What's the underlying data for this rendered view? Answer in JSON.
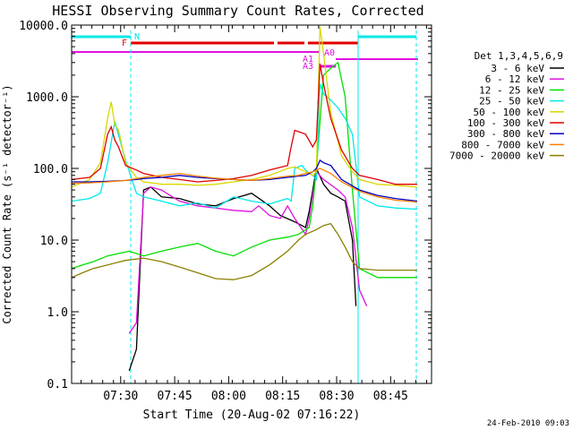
{
  "chart_data": {
    "type": "line",
    "title": "HESSI Observing Summary Count Rates, Corrected",
    "xlabel": "Start Time (20-Aug-02 07:16:22)",
    "ylabel": "Corrected Count Rate (s⁻¹ detector⁻¹)",
    "x_unit": "minutes since 07:16:22",
    "xlim": [
      0,
      100
    ],
    "ylim": [
      0.1,
      10000
    ],
    "yscale": "log",
    "x_ticks": [
      {
        "x": 13.63,
        "label": "07:30"
      },
      {
        "x": 28.63,
        "label": "07:45"
      },
      {
        "x": 43.63,
        "label": "08:00"
      },
      {
        "x": 58.63,
        "label": "08:15"
      },
      {
        "x": 73.63,
        "label": "08:30"
      },
      {
        "x": 88.63,
        "label": "08:45"
      }
    ],
    "y_ticks": [
      {
        "y": 10000,
        "label": "10000.0"
      },
      {
        "y": 1000,
        "label": "1000.0"
      },
      {
        "y": 100,
        "label": "100.0"
      },
      {
        "y": 10,
        "label": "10.0"
      },
      {
        "y": 1,
        "label": "1.0"
      },
      {
        "y": 0.1,
        "label": "0.1"
      }
    ],
    "legend_title": "Det 1,3,4,5,6,9",
    "legend_position": "right",
    "series": [
      {
        "name": "3 - 6 keV",
        "color": "#000000",
        "x": [
          16,
          18,
          20,
          22,
          25,
          30,
          35,
          40,
          45,
          50,
          55,
          58,
          62,
          65,
          66,
          68,
          70,
          72,
          74,
          76,
          78,
          79
        ],
        "y": [
          0.15,
          0.3,
          50,
          55,
          40,
          38,
          32,
          30,
          38,
          45,
          30,
          22,
          18,
          15,
          25,
          100,
          60,
          45,
          40,
          35,
          10,
          1.2
        ]
      },
      {
        "name": "6 - 12 keV",
        "color": "#e010e0",
        "x": [
          16,
          18,
          20,
          22,
          25,
          28,
          30,
          35,
          40,
          45,
          50,
          52,
          55,
          58,
          60,
          62,
          65,
          66,
          68,
          70,
          74,
          76,
          78,
          80,
          82
        ],
        "y": [
          0.5,
          0.7,
          45,
          55,
          50,
          40,
          35,
          30,
          28,
          26,
          25,
          30,
          22,
          20,
          30,
          20,
          12,
          20,
          90,
          70,
          50,
          40,
          15,
          2,
          1.2
        ]
      },
      {
        "name": "12 - 25 keV",
        "color": "#00e000",
        "x": [
          0,
          3,
          6,
          10,
          13,
          16,
          18,
          20,
          25,
          30,
          35,
          40,
          45,
          50,
          55,
          60,
          63,
          66,
          67,
          68,
          70,
          72,
          74,
          76,
          78,
          80,
          85,
          90,
          95,
          96
        ],
        "y": [
          4,
          4.5,
          5,
          6,
          6.5,
          7,
          6.5,
          6,
          7,
          8,
          9,
          7,
          6,
          8,
          10,
          11,
          12,
          15,
          30,
          100,
          2000,
          2500,
          3000,
          1000,
          50,
          4,
          3,
          3,
          3,
          3
        ]
      },
      {
        "name": "25 - 50 keV",
        "color": "#00e8e8",
        "x": [
          0,
          5,
          8,
          10,
          12,
          15,
          18,
          20,
          25,
          30,
          35,
          40,
          45,
          50,
          55,
          60,
          61,
          62,
          64,
          65,
          66,
          67,
          68,
          69,
          70,
          72,
          74,
          76,
          78,
          80,
          85,
          90,
          96
        ],
        "y": [
          35,
          38,
          45,
          120,
          450,
          130,
          45,
          40,
          35,
          30,
          33,
          28,
          40,
          35,
          32,
          38,
          35,
          100,
          110,
          95,
          85,
          80,
          70,
          1500,
          1100,
          900,
          700,
          500,
          300,
          40,
          30,
          28,
          27
        ]
      },
      {
        "name": "50 - 100 keV",
        "color": "#d8d800",
        "x": [
          0,
          5,
          8,
          10,
          11,
          12,
          13,
          15,
          18,
          20,
          25,
          30,
          35,
          40,
          45,
          50,
          55,
          60,
          62,
          65,
          67,
          68,
          69,
          70,
          72,
          75,
          78,
          80,
          85,
          90,
          96
        ],
        "y": [
          55,
          70,
          120,
          500,
          850,
          400,
          350,
          120,
          75,
          65,
          60,
          60,
          58,
          60,
          65,
          70,
          80,
          100,
          105,
          90,
          80,
          90,
          9500,
          4000,
          600,
          150,
          90,
          70,
          60,
          58,
          55
        ]
      },
      {
        "name": "100 - 300 keV",
        "color": "#e00000",
        "x": [
          0,
          5,
          8,
          10,
          11,
          12,
          13,
          15,
          18,
          20,
          25,
          30,
          35,
          40,
          45,
          50,
          55,
          60,
          61,
          62,
          65,
          67,
          68,
          69,
          70,
          72,
          75,
          78,
          80,
          85,
          90,
          96
        ],
        "y": [
          70,
          75,
          100,
          300,
          380,
          250,
          200,
          110,
          95,
          85,
          75,
          70,
          65,
          68,
          72,
          80,
          95,
          110,
          200,
          340,
          300,
          200,
          250,
          2900,
          1500,
          500,
          180,
          100,
          80,
          70,
          60,
          60
        ]
      },
      {
        "name": "300 - 800 keV",
        "color": "#0000c0",
        "x": [
          0,
          5,
          10,
          15,
          18,
          20,
          25,
          30,
          35,
          40,
          45,
          50,
          55,
          60,
          63,
          65,
          67,
          68,
          69,
          70,
          72,
          75,
          80,
          85,
          90,
          96
        ],
        "y": [
          65,
          65,
          66,
          68,
          70,
          72,
          75,
          80,
          75,
          72,
          70,
          68,
          70,
          75,
          78,
          80,
          90,
          100,
          130,
          120,
          110,
          70,
          50,
          42,
          38,
          35
        ]
      },
      {
        "name": "800 - 7000 keV",
        "color": "#ff8000",
        "x": [
          0,
          5,
          10,
          15,
          18,
          20,
          25,
          30,
          35,
          40,
          45,
          50,
          55,
          60,
          63,
          65,
          67,
          68,
          69,
          70,
          72,
          75,
          80,
          85,
          90,
          96
        ],
        "y": [
          62,
          63,
          65,
          68,
          72,
          75,
          80,
          85,
          78,
          73,
          70,
          68,
          72,
          78,
          80,
          85,
          90,
          95,
          100,
          95,
          85,
          65,
          48,
          40,
          36,
          34
        ]
      },
      {
        "name": "7000 - 20000 keV",
        "color": "#8b8000",
        "x": [
          0,
          3,
          6,
          10,
          15,
          20,
          25,
          30,
          35,
          40,
          45,
          50,
          55,
          60,
          63,
          65,
          68,
          70,
          72,
          74,
          76,
          78,
          80,
          85,
          90,
          96
        ],
        "y": [
          3,
          3.5,
          4,
          4.5,
          5.2,
          5.6,
          5,
          4.2,
          3.5,
          2.9,
          2.8,
          3.2,
          4.5,
          7,
          10,
          12,
          14,
          16,
          17,
          12,
          8,
          5,
          4,
          3.8,
          3.8,
          3.8
        ]
      }
    ],
    "annotations": [
      {
        "label": "N",
        "color": "#00e8e8"
      },
      {
        "label": "F",
        "color": "#e00000"
      },
      {
        "label": "A0",
        "color": "#e010e0"
      },
      {
        "label": "A1",
        "color": "#e010e0"
      },
      {
        "label": "A3",
        "color": "#e010e0"
      }
    ],
    "grid": false
  },
  "footer": {
    "date_stamp": "24-Feb-2010 09:03"
  }
}
